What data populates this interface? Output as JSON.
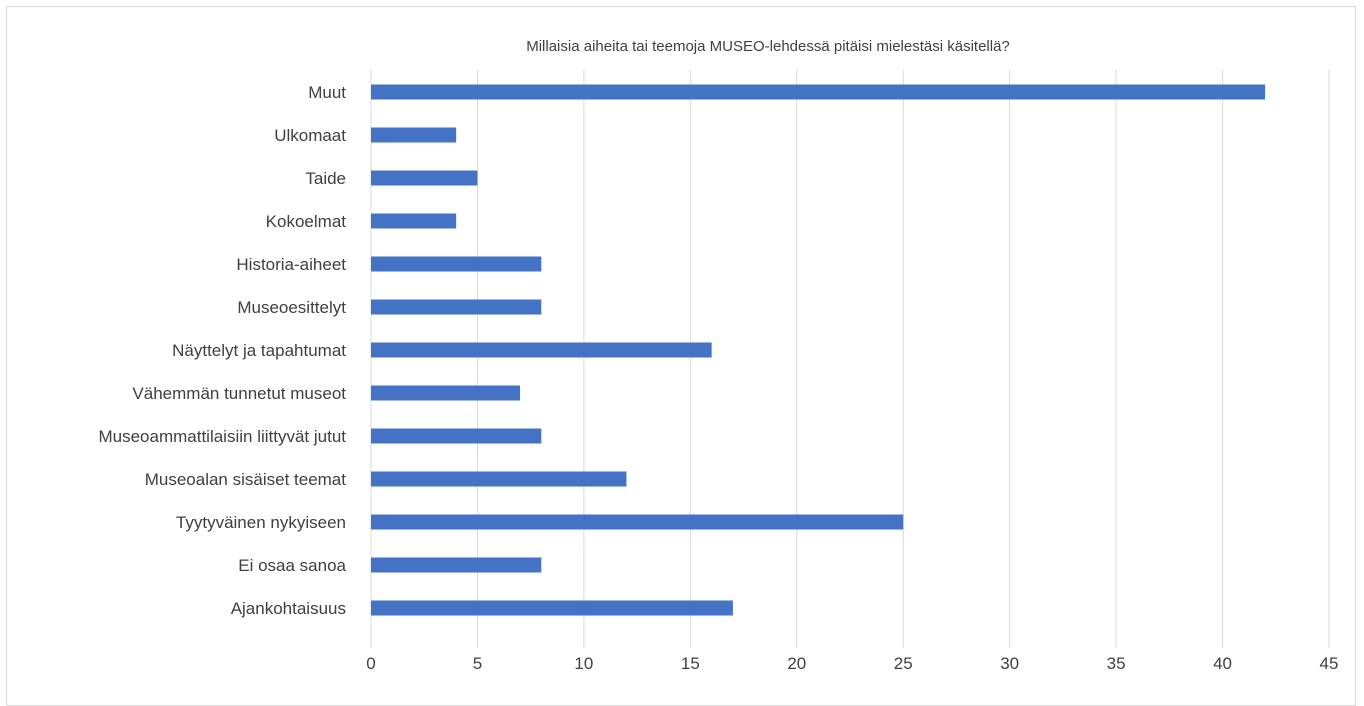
{
  "chart_data": {
    "type": "bar",
    "orientation": "horizontal",
    "title": "Millaisia aiheita tai teemoja MUSEO-lehdessä pitäisi mielestäsi käsitellä?",
    "categories": [
      "Muut",
      "Ulkomaat",
      "Taide",
      "Kokoelmat",
      "Historia-aiheet",
      "Museoesittelyt",
      "Näyttelyt ja tapahtumat",
      "Vähemmän tunnetut museot",
      "Museoammattilaisiin liittyvät jutut",
      "Museoalan sisäiset teemat",
      "Tyytyväinen nykyiseen",
      "Ei osaa sanoa",
      "Ajankohtaisuus"
    ],
    "values": [
      42,
      4,
      5,
      4,
      8,
      8,
      16,
      7,
      8,
      12,
      25,
      8,
      17
    ],
    "xlim": [
      0,
      45
    ],
    "xticks": [
      "0",
      "5",
      "10",
      "15",
      "20",
      "25",
      "30",
      "35",
      "40",
      "45"
    ],
    "grid": true,
    "bar_color": "#4472c4",
    "grid_color": "#d9d9d9",
    "text_color": "#404040"
  }
}
